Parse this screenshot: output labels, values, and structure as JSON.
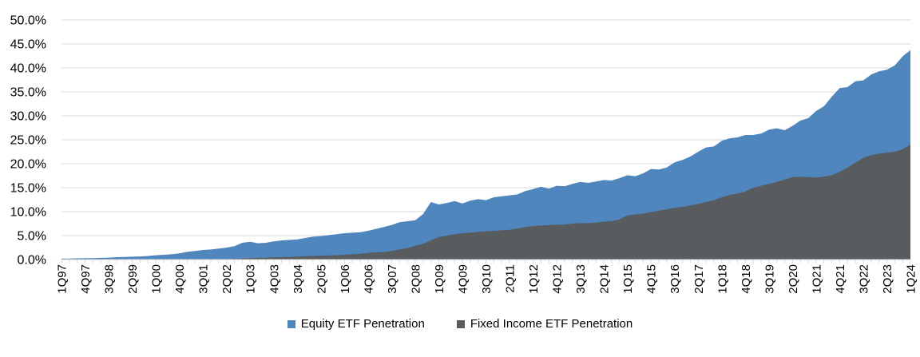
{
  "chart_data": {
    "type": "area",
    "overlapping": true,
    "title": "",
    "xlabel": "",
    "ylabel": "",
    "ylim": [
      0,
      50
    ],
    "y_tick_step": 5,
    "y_tick_labels": [
      "0.0%",
      "5.0%",
      "10.0%",
      "15.0%",
      "20.0%",
      "25.0%",
      "30.0%",
      "35.0%",
      "40.0%",
      "45.0%",
      "50.0%"
    ],
    "x_tick_label_every": 3,
    "x_tick_labels_shown": [
      "1Q97",
      "4Q97",
      "3Q98",
      "2Q99",
      "1Q00",
      "4Q00",
      "3Q01",
      "2Q02",
      "1Q03",
      "4Q03",
      "3Q04",
      "2Q05",
      "1Q06",
      "4Q06",
      "3Q07",
      "2Q08",
      "1Q09",
      "4Q09",
      "3Q10",
      "2Q11",
      "1Q12",
      "4Q12",
      "3Q13",
      "2Q14",
      "1Q15",
      "4Q15",
      "3Q16",
      "2Q17",
      "1Q18",
      "4Q18",
      "3Q19",
      "2Q20",
      "1Q21",
      "4Q21",
      "3Q22",
      "2Q23",
      "1Q24"
    ],
    "grid": true,
    "legend_position": "bottom",
    "categories": [
      "1Q97",
      "2Q97",
      "3Q97",
      "4Q97",
      "1Q98",
      "2Q98",
      "3Q98",
      "4Q98",
      "1Q99",
      "2Q99",
      "3Q99",
      "4Q99",
      "1Q00",
      "2Q00",
      "3Q00",
      "4Q00",
      "1Q01",
      "2Q01",
      "3Q01",
      "4Q01",
      "1Q02",
      "2Q02",
      "3Q02",
      "4Q02",
      "1Q03",
      "2Q03",
      "3Q03",
      "4Q03",
      "1Q04",
      "2Q04",
      "3Q04",
      "4Q04",
      "1Q05",
      "2Q05",
      "3Q05",
      "4Q05",
      "1Q06",
      "2Q06",
      "3Q06",
      "4Q06",
      "1Q07",
      "2Q07",
      "3Q07",
      "4Q07",
      "1Q08",
      "2Q08",
      "3Q08",
      "4Q08",
      "1Q09",
      "2Q09",
      "3Q09",
      "4Q09",
      "1Q10",
      "2Q10",
      "3Q10",
      "4Q10",
      "1Q11",
      "2Q11",
      "3Q11",
      "4Q11",
      "1Q12",
      "2Q12",
      "3Q12",
      "4Q12",
      "1Q13",
      "2Q13",
      "3Q13",
      "4Q13",
      "1Q14",
      "2Q14",
      "3Q14",
      "4Q14",
      "1Q15",
      "2Q15",
      "3Q15",
      "4Q15",
      "1Q16",
      "2Q16",
      "3Q16",
      "4Q16",
      "1Q17",
      "2Q17",
      "3Q17",
      "4Q17",
      "1Q18",
      "2Q18",
      "3Q18",
      "4Q18",
      "1Q19",
      "2Q19",
      "3Q19",
      "4Q19",
      "1Q20",
      "2Q20",
      "3Q20",
      "4Q20",
      "1Q21",
      "2Q21",
      "3Q21",
      "4Q21",
      "1Q22",
      "2Q22",
      "3Q22",
      "4Q22",
      "1Q23",
      "2Q23",
      "3Q23",
      "4Q23",
      "1Q24"
    ],
    "series": [
      {
        "name": "Equity ETF Penetration",
        "color": "#4e86bd",
        "values": [
          0.2,
          0.2,
          0.25,
          0.3,
          0.3,
          0.35,
          0.4,
          0.5,
          0.55,
          0.6,
          0.65,
          0.75,
          0.9,
          1.0,
          1.1,
          1.3,
          1.6,
          1.8,
          2.0,
          2.1,
          2.3,
          2.5,
          2.8,
          3.5,
          3.7,
          3.4,
          3.5,
          3.8,
          4.0,
          4.1,
          4.2,
          4.5,
          4.8,
          4.9,
          5.1,
          5.3,
          5.5,
          5.6,
          5.7,
          6.0,
          6.4,
          6.8,
          7.2,
          7.8,
          8.0,
          8.2,
          9.5,
          12.0,
          11.5,
          11.8,
          12.2,
          11.7,
          12.3,
          12.6,
          12.4,
          13.0,
          13.2,
          13.4,
          13.6,
          14.3,
          14.7,
          15.2,
          14.8,
          15.4,
          15.3,
          15.8,
          16.2,
          16.0,
          16.3,
          16.6,
          16.5,
          17.0,
          17.6,
          17.4,
          18.0,
          18.9,
          18.8,
          19.2,
          20.3,
          20.8,
          21.5,
          22.5,
          23.4,
          23.6,
          24.8,
          25.3,
          25.5,
          26.0,
          26.0,
          26.3,
          27.1,
          27.4,
          27.0,
          27.9,
          29.0,
          29.5,
          31.0,
          32.0,
          34.0,
          35.8,
          36.0,
          37.2,
          37.4,
          38.6,
          39.3,
          39.6,
          40.5,
          42.4,
          43.7
        ]
      },
      {
        "name": "Fixed Income ETF Penetration",
        "color": "#595c5e",
        "values": [
          0,
          0,
          0,
          0,
          0,
          0,
          0,
          0,
          0,
          0,
          0,
          0,
          0,
          0,
          0,
          0,
          0,
          0,
          0,
          0,
          0.05,
          0.1,
          0.15,
          0.2,
          0.3,
          0.35,
          0.4,
          0.45,
          0.5,
          0.55,
          0.6,
          0.7,
          0.75,
          0.8,
          0.85,
          0.9,
          1.0,
          1.1,
          1.2,
          1.4,
          1.5,
          1.6,
          1.8,
          2.1,
          2.4,
          2.9,
          3.3,
          4.0,
          4.7,
          5.0,
          5.3,
          5.5,
          5.6,
          5.8,
          5.9,
          6.0,
          6.1,
          6.2,
          6.5,
          6.8,
          7.0,
          7.1,
          7.2,
          7.3,
          7.3,
          7.5,
          7.6,
          7.6,
          7.7,
          7.9,
          8.0,
          8.4,
          9.2,
          9.4,
          9.6,
          9.9,
          10.2,
          10.5,
          10.8,
          11.0,
          11.3,
          11.6,
          12.0,
          12.4,
          13.0,
          13.5,
          13.8,
          14.2,
          15.0,
          15.4,
          15.8,
          16.2,
          16.7,
          17.2,
          17.3,
          17.2,
          17.1,
          17.3,
          17.6,
          18.3,
          19.2,
          20.2,
          21.2,
          21.8,
          22.1,
          22.3,
          22.5,
          23.0,
          24.0
        ]
      }
    ]
  },
  "legend": {
    "items": [
      {
        "label": "Equity ETF Penetration",
        "color": "#4e86bd"
      },
      {
        "label": "Fixed Income ETF Penetration",
        "color": "#595c5e"
      }
    ]
  },
  "colors": {
    "grid": "#d9d9d9",
    "axis_text": "#000000",
    "background": "#ffffff"
  }
}
